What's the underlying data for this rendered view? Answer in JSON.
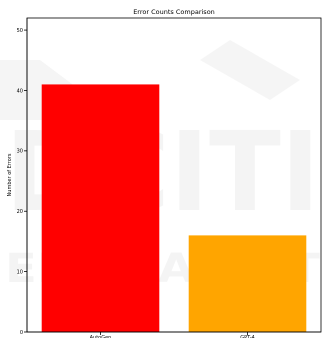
{
  "chart_data": {
    "type": "bar",
    "title": "Error Counts Comparison",
    "xlabel": "",
    "ylabel": "Number of Errors",
    "categories": [
      "AutoGen",
      "GPT-4"
    ],
    "values": [
      41,
      16
    ],
    "colors": [
      "#ff0000",
      "#ffa500"
    ],
    "ylim": [
      0,
      52
    ],
    "yticks": [
      0,
      10,
      20,
      30,
      40,
      50
    ],
    "grid": false,
    "legend": "none"
  }
}
